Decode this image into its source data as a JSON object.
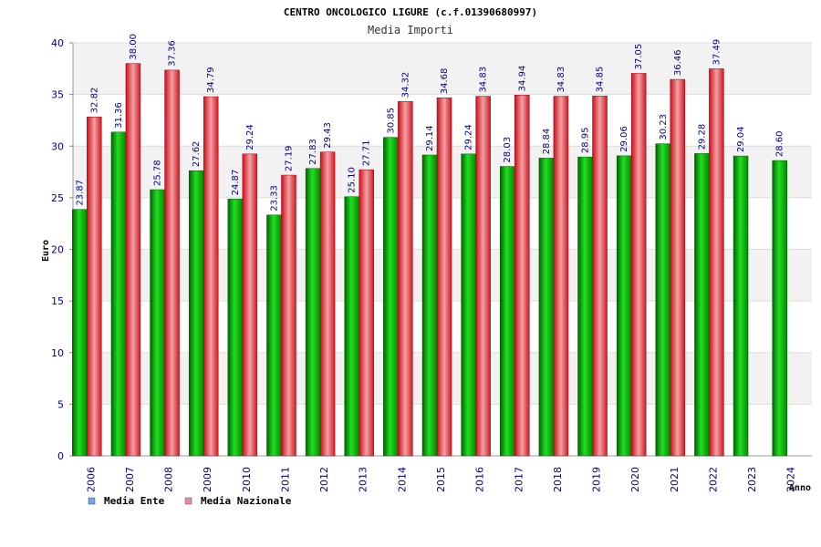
{
  "chart_data": {
    "type": "bar",
    "title": "CENTRO ONCOLOGICO LIGURE (c.f.01390680997)",
    "subtitle": "Media Importi",
    "xlabel": "Anno",
    "ylabel": "Euro",
    "ylim": [
      0,
      40
    ],
    "yticks": [
      0,
      5,
      10,
      15,
      20,
      25,
      30,
      35,
      40
    ],
    "categories": [
      "2006",
      "2007",
      "2008",
      "2009",
      "2010",
      "2011",
      "2012",
      "2013",
      "2014",
      "2015",
      "2016",
      "2017",
      "2018",
      "2019",
      "2020",
      "2021",
      "2022",
      "2023",
      "2024"
    ],
    "series": [
      {
        "name": "Media Ente",
        "color": "#00aa00",
        "legend_color": "#6aa6e8",
        "values": [
          23.87,
          31.36,
          25.78,
          27.62,
          24.87,
          23.33,
          27.83,
          25.1,
          30.85,
          29.14,
          29.24,
          28.03,
          28.84,
          28.95,
          29.06,
          30.23,
          29.28,
          29.04,
          28.6
        ],
        "labels": [
          "23.87",
          "31.36",
          "25.78",
          "27.62",
          "24.87",
          "23.33",
          "27.83",
          "25.10",
          "30.85",
          "29.14",
          "29.24",
          "28.03",
          "28.84",
          "28.95",
          "29.06",
          "30.23",
          "29.28",
          "29.04",
          "28.60"
        ]
      },
      {
        "name": "Media Nazionale",
        "color": "#e8202a",
        "legend_color": "#e889b0",
        "values": [
          32.82,
          38.0,
          37.36,
          34.79,
          29.24,
          27.19,
          29.43,
          27.71,
          34.32,
          34.68,
          34.83,
          34.94,
          34.83,
          34.85,
          37.05,
          36.46,
          37.49,
          null,
          null
        ],
        "labels": [
          "32.82",
          "38.00",
          "37.36",
          "34.79",
          "29.24",
          "27.19",
          "29.43",
          "27.71",
          "34.32",
          "34.68",
          "34.83",
          "34.94",
          "34.83",
          "34.85",
          "37.05",
          "36.46",
          "37.49",
          null,
          null
        ]
      }
    ],
    "grid": true,
    "legend_position": "bottom-left"
  }
}
